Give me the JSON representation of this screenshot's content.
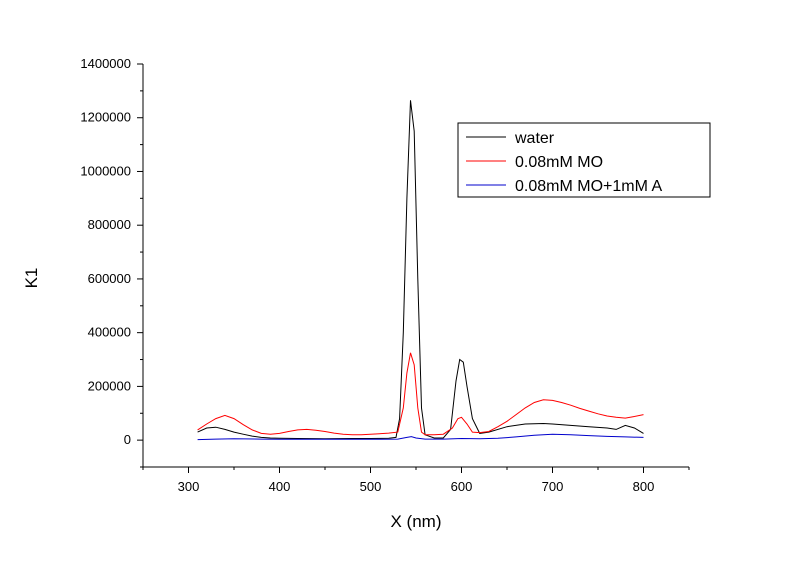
{
  "chart_data": {
    "type": "line",
    "title": "",
    "xlabel": "X (nm)",
    "ylabel": "K1",
    "xlim": [
      250,
      850
    ],
    "ylim": [
      -100000,
      1400000
    ],
    "x_ticks": [
      300,
      400,
      500,
      600,
      700,
      800
    ],
    "y_ticks": [
      0,
      200000,
      400000,
      600000,
      800000,
      1000000,
      1200000,
      1400000
    ],
    "x_tick_labels": [
      "300",
      "400",
      "500",
      "600",
      "700",
      "800"
    ],
    "y_tick_labels": [
      "0",
      "200000",
      "400000",
      "600000",
      "800000",
      "1000000",
      "1200000",
      "1400000"
    ],
    "grid": false,
    "legend_position": "top-right",
    "series": [
      {
        "name": "water",
        "color": "#000000",
        "points": [
          [
            310,
            30000
          ],
          [
            320,
            45000
          ],
          [
            330,
            48000
          ],
          [
            340,
            40000
          ],
          [
            350,
            30000
          ],
          [
            360,
            22000
          ],
          [
            370,
            15000
          ],
          [
            380,
            10000
          ],
          [
            390,
            8000
          ],
          [
            400,
            7000
          ],
          [
            420,
            6000
          ],
          [
            450,
            5500
          ],
          [
            480,
            6000
          ],
          [
            500,
            6000
          ],
          [
            520,
            7000
          ],
          [
            528,
            10000
          ],
          [
            532,
            80000
          ],
          [
            536,
            400000
          ],
          [
            540,
            900000
          ],
          [
            544,
            1265000
          ],
          [
            548,
            1150000
          ],
          [
            552,
            600000
          ],
          [
            556,
            120000
          ],
          [
            560,
            20000
          ],
          [
            570,
            8000
          ],
          [
            580,
            8000
          ],
          [
            588,
            40000
          ],
          [
            594,
            220000
          ],
          [
            598,
            300000
          ],
          [
            602,
            290000
          ],
          [
            606,
            200000
          ],
          [
            612,
            80000
          ],
          [
            620,
            25000
          ],
          [
            630,
            30000
          ],
          [
            650,
            50000
          ],
          [
            670,
            60000
          ],
          [
            690,
            62000
          ],
          [
            700,
            60000
          ],
          [
            720,
            55000
          ],
          [
            740,
            50000
          ],
          [
            760,
            45000
          ],
          [
            770,
            40000
          ],
          [
            780,
            55000
          ],
          [
            790,
            45000
          ],
          [
            800,
            25000
          ]
        ]
      },
      {
        "name": "0.08mM MO",
        "color": "#ff0000",
        "points": [
          [
            310,
            38000
          ],
          [
            320,
            60000
          ],
          [
            330,
            80000
          ],
          [
            340,
            92000
          ],
          [
            350,
            80000
          ],
          [
            360,
            58000
          ],
          [
            370,
            38000
          ],
          [
            380,
            25000
          ],
          [
            390,
            22000
          ],
          [
            400,
            25000
          ],
          [
            410,
            32000
          ],
          [
            420,
            38000
          ],
          [
            430,
            40000
          ],
          [
            440,
            37000
          ],
          [
            450,
            32000
          ],
          [
            460,
            26000
          ],
          [
            470,
            22000
          ],
          [
            480,
            20000
          ],
          [
            490,
            20000
          ],
          [
            500,
            22000
          ],
          [
            510,
            24000
          ],
          [
            520,
            26000
          ],
          [
            530,
            30000
          ],
          [
            536,
            120000
          ],
          [
            540,
            250000
          ],
          [
            544,
            325000
          ],
          [
            548,
            280000
          ],
          [
            552,
            120000
          ],
          [
            556,
            30000
          ],
          [
            560,
            20000
          ],
          [
            570,
            20000
          ],
          [
            580,
            22000
          ],
          [
            590,
            45000
          ],
          [
            596,
            80000
          ],
          [
            600,
            85000
          ],
          [
            606,
            60000
          ],
          [
            612,
            30000
          ],
          [
            620,
            28000
          ],
          [
            630,
            32000
          ],
          [
            640,
            50000
          ],
          [
            650,
            70000
          ],
          [
            660,
            95000
          ],
          [
            670,
            120000
          ],
          [
            680,
            140000
          ],
          [
            690,
            150000
          ],
          [
            700,
            148000
          ],
          [
            710,
            140000
          ],
          [
            720,
            130000
          ],
          [
            730,
            118000
          ],
          [
            740,
            108000
          ],
          [
            750,
            98000
          ],
          [
            760,
            90000
          ],
          [
            770,
            85000
          ],
          [
            780,
            82000
          ],
          [
            790,
            88000
          ],
          [
            800,
            95000
          ]
        ]
      },
      {
        "name": "0.08mM MO+1mM A",
        "color": "#0000cc",
        "points": [
          [
            310,
            2000
          ],
          [
            330,
            4000
          ],
          [
            350,
            5000
          ],
          [
            380,
            4000
          ],
          [
            400,
            3000
          ],
          [
            450,
            3000
          ],
          [
            500,
            3000
          ],
          [
            530,
            4000
          ],
          [
            540,
            10000
          ],
          [
            545,
            13000
          ],
          [
            550,
            8000
          ],
          [
            560,
            4000
          ],
          [
            580,
            4000
          ],
          [
            600,
            6000
          ],
          [
            620,
            5000
          ],
          [
            640,
            7000
          ],
          [
            660,
            12000
          ],
          [
            680,
            18000
          ],
          [
            700,
            22000
          ],
          [
            720,
            20000
          ],
          [
            740,
            17000
          ],
          [
            760,
            14000
          ],
          [
            780,
            12000
          ],
          [
            800,
            10000
          ]
        ]
      }
    ]
  }
}
